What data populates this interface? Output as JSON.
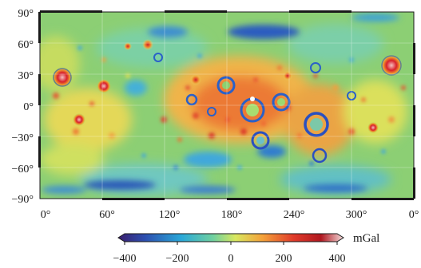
{
  "map": {
    "y_ticks": [
      "90°",
      "60°",
      "30°",
      "0°",
      "−30°",
      "−60°",
      "−90°"
    ],
    "x_ticks": [
      "0°",
      "60°",
      "120°",
      "180°",
      "240°",
      "300°",
      "0°"
    ],
    "latitude_range": [
      -90,
      90
    ],
    "longitude_range": [
      0,
      360
    ]
  },
  "colorbar": {
    "unit": "mGal",
    "ticks": [
      "−400",
      "−200",
      "0",
      "200",
      "400"
    ],
    "range": [
      -400,
      400
    ],
    "colors": [
      "#3b1e6d",
      "#2c4fb0",
      "#2aa8d8",
      "#6fd0a0",
      "#d8e860",
      "#f4a23a",
      "#e03a2a",
      "#b01820",
      "#f4dede"
    ]
  }
}
